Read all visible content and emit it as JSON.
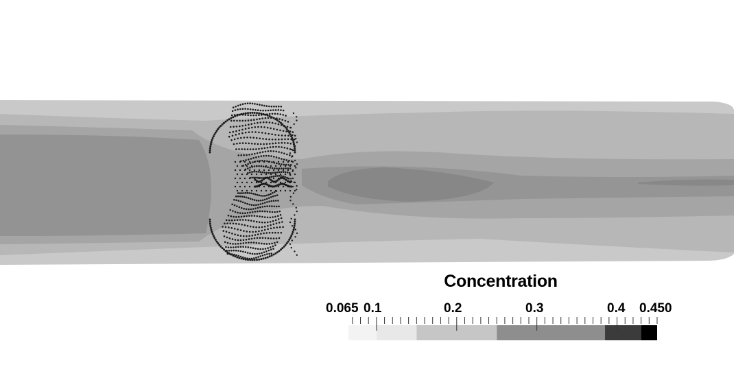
{
  "legend": {
    "title": "Concentration",
    "range_min": 0.065,
    "range_max": 0.45,
    "tick_labels": {
      "min": "0.065",
      "t01": "0.1",
      "t02": "0.2",
      "t03": "0.3",
      "t04": "0.4",
      "max": "0.450"
    },
    "bands": [
      {
        "from": 0.065,
        "to": 0.1,
        "color": "#f3f3f3"
      },
      {
        "from": 0.1,
        "to": 0.15,
        "color": "#e8e8e8"
      },
      {
        "from": 0.15,
        "to": 0.25,
        "color": "#c6c6c6"
      },
      {
        "from": 0.25,
        "to": 0.385,
        "color": "#8e8e8e"
      },
      {
        "from": 0.385,
        "to": 0.43,
        "color": "#3b3b3b"
      },
      {
        "from": 0.43,
        "to": 0.45,
        "color": "#000000"
      }
    ]
  },
  "colors": {
    "outer_band": "#c8c8c8",
    "band_2": "#b5b5b5",
    "band_3": "#a4a4a4",
    "core": "#909090",
    "core_dark": "#858585",
    "particles": "#1a1a1a"
  }
}
